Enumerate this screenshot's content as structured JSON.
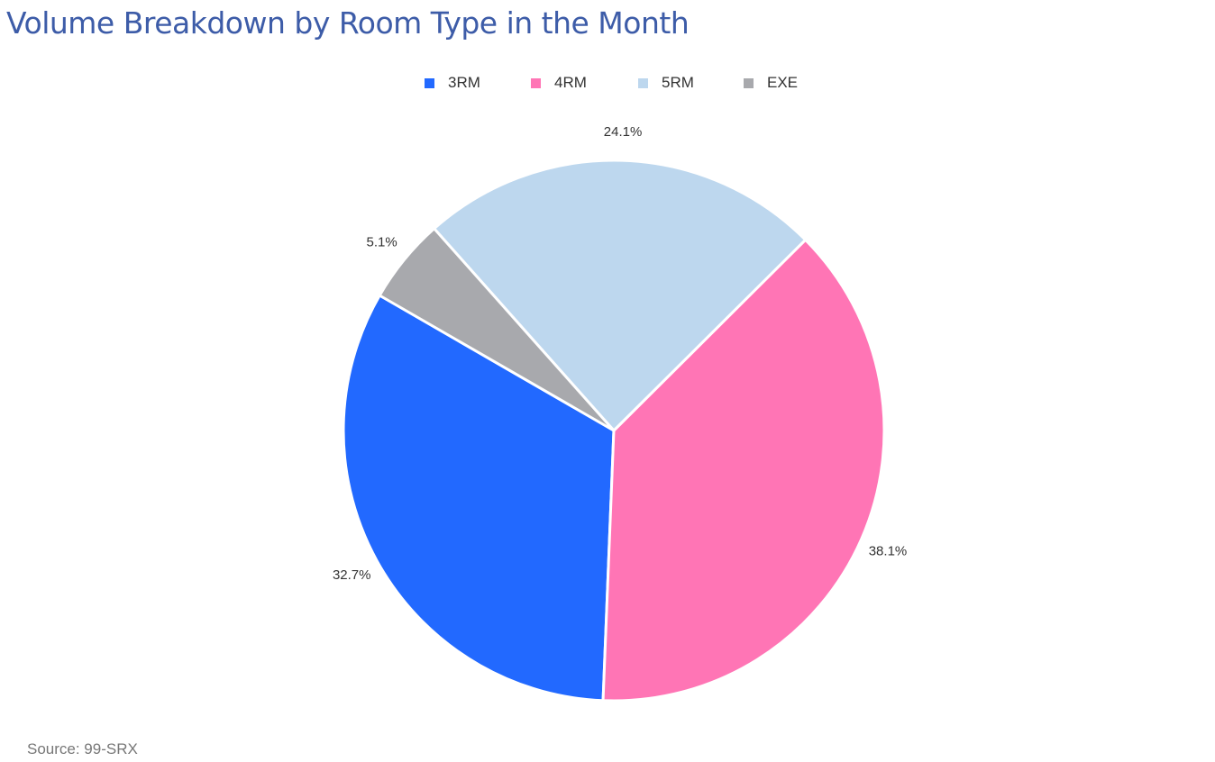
{
  "chart_data": {
    "type": "pie",
    "title": "Volume Breakdown by Room Type in the Month",
    "categories": [
      "3RM",
      "4RM",
      "5RM",
      "EXE"
    ],
    "values": [
      32.7,
      38.1,
      24.1,
      5.1
    ],
    "data_labels": [
      "32.7%",
      "38.1%",
      "24.1%",
      "5.1%"
    ],
    "colors": [
      "#2269ff",
      "#ff75b5",
      "#bdd7ee",
      "#a8a9ad"
    ],
    "legend_position": "top",
    "source": "Source: 99-SRX"
  }
}
